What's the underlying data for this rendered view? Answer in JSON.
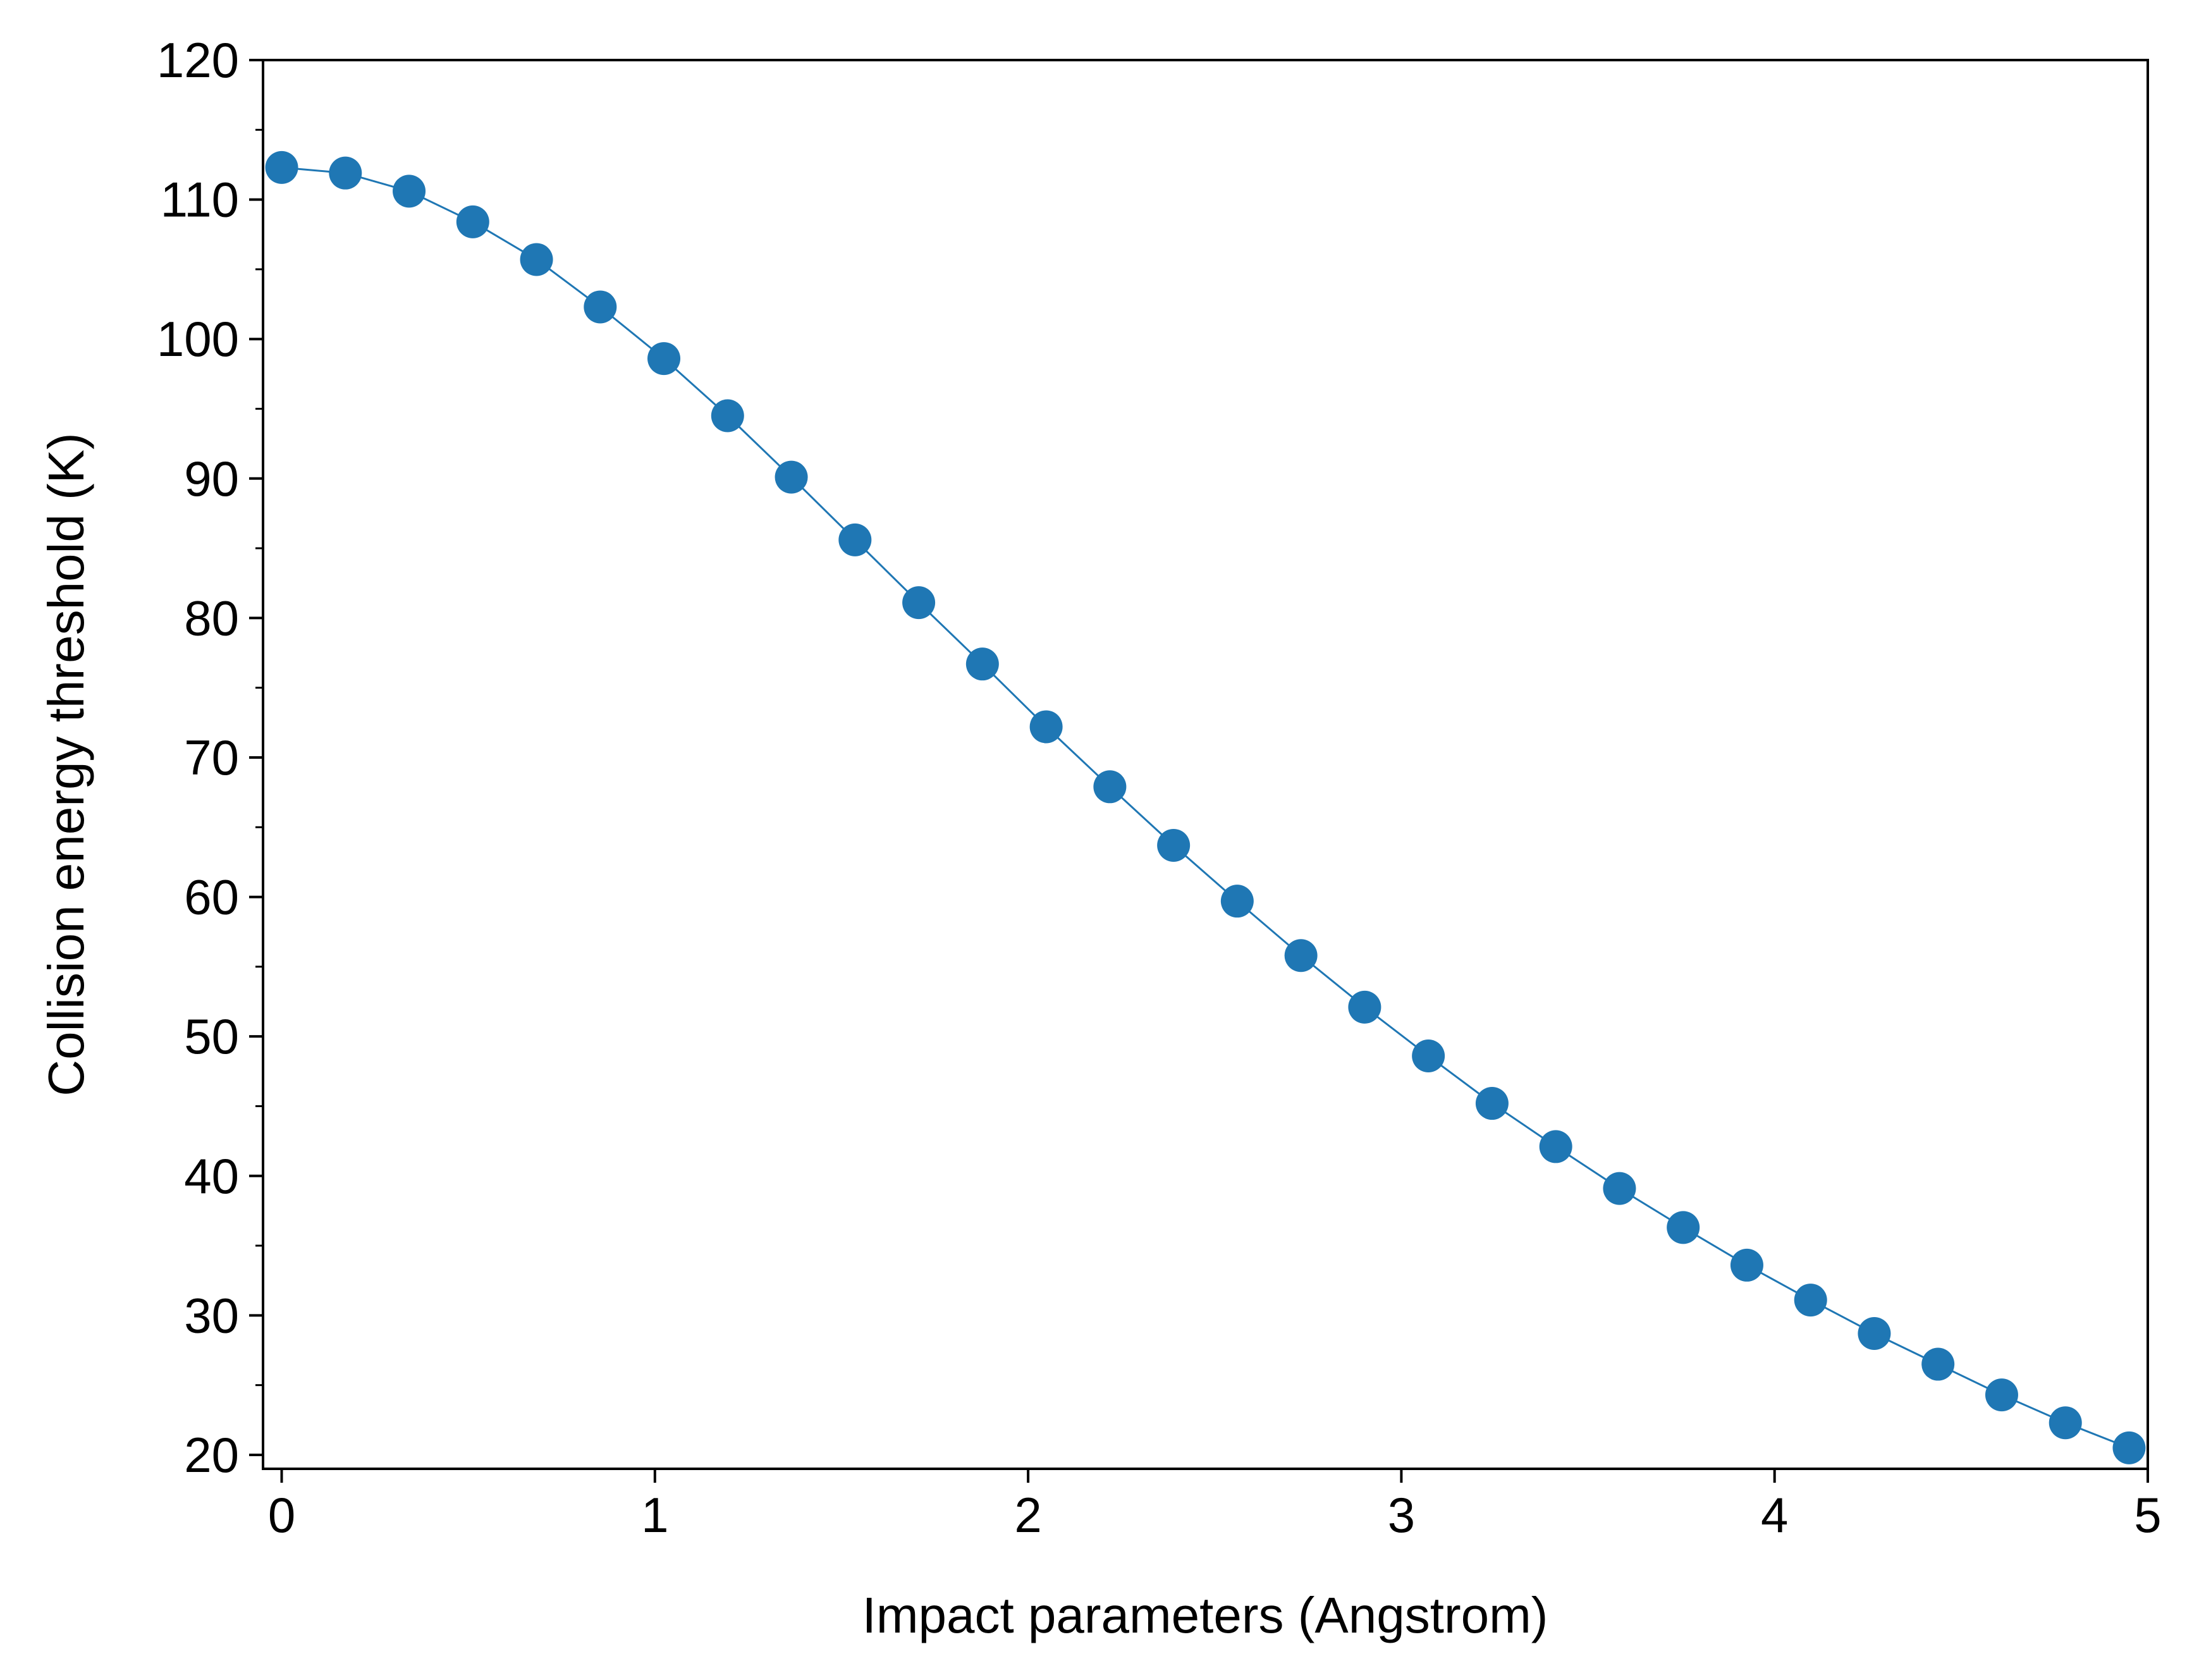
{
  "chart_data": {
    "type": "line",
    "title": "",
    "xlabel": "Impact parameters (Angstrom)",
    "ylabel": "Collision energy threshold (K)",
    "xlim": [
      -0.05,
      5.0
    ],
    "ylim": [
      19,
      120
    ],
    "xticks": [
      0,
      1,
      2,
      3,
      4,
      5
    ],
    "xtick_labels": [
      "0",
      "1",
      "2",
      "3",
      "4",
      "5"
    ],
    "yticks": [
      20,
      30,
      40,
      50,
      60,
      70,
      80,
      90,
      100,
      110,
      120
    ],
    "ytick_labels": [
      "20",
      "30",
      "40",
      "50",
      "60",
      "70",
      "80",
      "90",
      "100",
      "110",
      "120"
    ],
    "y_minor_step": 5,
    "grid": false,
    "legend": "none",
    "color": "#1f77b4",
    "series": [
      {
        "x": [
          0.0,
          0.1707,
          0.3414,
          0.5121,
          0.6828,
          0.8535,
          1.0241,
          1.1948,
          1.3655,
          1.5362,
          1.7069,
          1.8776,
          2.0483,
          2.219,
          2.3897,
          2.5603,
          2.731,
          2.9017,
          3.0724,
          3.2431,
          3.4138,
          3.5845,
          3.7552,
          3.9259,
          4.0966,
          4.2672,
          4.4379,
          4.6086,
          4.7793,
          4.95
        ],
        "y": [
          112.3,
          111.9,
          110.6,
          108.4,
          105.7,
          102.3,
          98.6,
          94.5,
          90.1,
          85.6,
          81.1,
          76.7,
          72.2,
          67.9,
          63.7,
          59.7,
          55.8,
          52.1,
          48.6,
          45.2,
          42.1,
          39.1,
          36.3,
          33.6,
          31.1,
          28.7,
          26.5,
          24.3,
          22.3,
          20.5
        ]
      }
    ]
  }
}
